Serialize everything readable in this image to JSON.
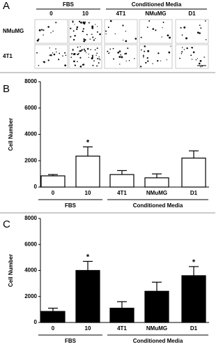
{
  "panel_a": {
    "label": "A",
    "groups": [
      {
        "label": "FBS",
        "columns": [
          "0",
          "10"
        ]
      },
      {
        "label": "Conditioned Media",
        "columns": [
          "4T1",
          "NMuMG",
          "D1"
        ]
      }
    ],
    "rows": [
      "NMuMG",
      "4T1"
    ]
  },
  "chart_data": [
    {
      "type": "bar",
      "panel_label": "B",
      "y_label": "Cell Number",
      "category_groups": [
        {
          "label": "FBS",
          "categories": [
            "0",
            "10"
          ]
        },
        {
          "label": "Conditioned Media",
          "categories": [
            "4T1",
            "NMuMG",
            "D1"
          ]
        }
      ],
      "values": [
        850,
        2350,
        950,
        700,
        2200
      ],
      "errors": [
        100,
        700,
        300,
        300,
        550
      ],
      "markers": [
        null,
        "*",
        null,
        null,
        null
      ],
      "color": "#ffffff",
      "ylim": [
        0,
        8000
      ],
      "yticks": [
        0,
        2000,
        4000,
        6000,
        8000
      ]
    },
    {
      "type": "bar",
      "panel_label": "C",
      "y_label": "Cell Number",
      "category_groups": [
        {
          "label": "FBS",
          "categories": [
            "0",
            "10"
          ]
        },
        {
          "label": "Conditioned Media",
          "categories": [
            "4T1",
            "NMuMG",
            "D1"
          ]
        }
      ],
      "values": [
        850,
        4000,
        1100,
        2400,
        3600
      ],
      "errors": [
        250,
        700,
        500,
        700,
        700
      ],
      "markers": [
        null,
        "*",
        null,
        null,
        "*"
      ],
      "color": "#000000",
      "ylim": [
        0,
        8000
      ],
      "yticks": [
        0,
        2000,
        4000,
        6000,
        8000
      ]
    }
  ]
}
